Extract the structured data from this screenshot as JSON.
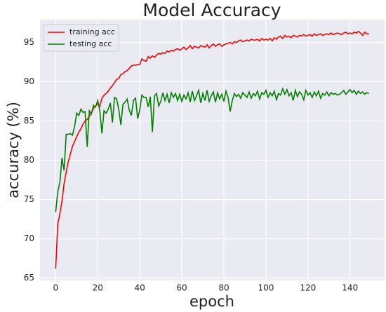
{
  "chart_data": {
    "type": "line",
    "title": "Model Accuracy",
    "xlabel": "epoch",
    "ylabel": "accuracy (%)",
    "x": [
      0,
      1,
      2,
      3,
      4,
      5,
      6,
      7,
      8,
      9,
      10,
      11,
      12,
      13,
      14,
      15,
      16,
      17,
      18,
      19,
      20,
      21,
      22,
      23,
      24,
      25,
      26,
      27,
      28,
      29,
      30,
      31,
      32,
      33,
      34,
      35,
      36,
      37,
      38,
      39,
      40,
      41,
      42,
      43,
      44,
      45,
      46,
      47,
      48,
      49,
      50,
      51,
      52,
      53,
      54,
      55,
      56,
      57,
      58,
      59,
      60,
      61,
      62,
      63,
      64,
      65,
      66,
      67,
      68,
      69,
      70,
      71,
      72,
      73,
      74,
      75,
      76,
      77,
      78,
      79,
      80,
      81,
      82,
      83,
      84,
      85,
      86,
      87,
      88,
      89,
      90,
      91,
      92,
      93,
      94,
      95,
      96,
      97,
      98,
      99,
      100,
      101,
      102,
      103,
      104,
      105,
      106,
      107,
      108,
      109,
      110,
      111,
      112,
      113,
      114,
      115,
      116,
      117,
      118,
      119,
      120,
      121,
      122,
      123,
      124,
      125,
      126,
      127,
      128,
      129,
      130,
      131,
      132,
      133,
      134,
      135,
      136,
      137,
      138,
      139,
      140,
      141,
      142,
      143,
      144,
      145,
      146,
      147,
      148,
      149
    ],
    "series": [
      {
        "name": "training acc",
        "color": "#ff0000",
        "values": [
          66.2,
          71.8,
          73.2,
          74.8,
          77.0,
          78.5,
          79.8,
          80.8,
          81.8,
          82.4,
          83.0,
          83.6,
          84.0,
          84.6,
          85.0,
          85.2,
          85.6,
          86.0,
          86.6,
          86.9,
          87.2,
          86.9,
          87.9,
          88.3,
          88.5,
          88.8,
          89.2,
          89.5,
          89.9,
          90.3,
          90.4,
          90.9,
          91.0,
          91.3,
          91.4,
          91.7,
          92.0,
          92.1,
          92.1,
          92.2,
          92.2,
          92.9,
          92.7,
          92.6,
          93.2,
          93.0,
          93.3,
          93.1,
          93.4,
          93.6,
          93.5,
          93.7,
          93.6,
          93.9,
          93.8,
          94.0,
          93.9,
          94.1,
          94.2,
          94.0,
          94.2,
          94.4,
          94.1,
          94.3,
          94.6,
          94.2,
          94.5,
          94.4,
          94.3,
          94.6,
          94.5,
          94.4,
          94.7,
          94.3,
          94.6,
          94.8,
          94.5,
          94.7,
          94.8,
          94.5,
          94.7,
          94.8,
          94.9,
          95.0,
          94.8,
          95.1,
          95.0,
          95.2,
          95.3,
          95.1,
          95.2,
          95.3,
          95.2,
          95.4,
          95.3,
          95.3,
          95.4,
          95.2,
          95.5,
          95.3,
          95.4,
          95.3,
          95.5,
          95.2,
          95.6,
          95.4,
          95.7,
          95.8,
          95.5,
          95.9,
          95.7,
          95.8,
          95.6,
          95.9,
          95.8,
          95.7,
          95.9,
          95.8,
          96.0,
          95.8,
          95.9,
          96.0,
          95.8,
          96.1,
          95.9,
          96.0,
          96.1,
          95.9,
          96.0,
          96.1,
          96.0,
          96.2,
          96.0,
          96.1,
          96.2,
          96.1,
          96.0,
          96.2,
          96.3,
          96.1,
          96.2,
          96.1,
          96.3,
          96.2,
          96.4,
          96.2,
          95.9,
          96.3,
          96.1,
          96.1
        ]
      },
      {
        "name": "testing acc",
        "color": "#008000",
        "values": [
          73.4,
          76.0,
          77.2,
          80.3,
          78.7,
          83.3,
          83.3,
          83.4,
          83.2,
          84.3,
          86.0,
          85.7,
          86.5,
          86.1,
          86.2,
          81.7,
          86.3,
          85.9,
          87.0,
          86.8,
          87.6,
          86.3,
          83.4,
          86.3,
          86.0,
          86.5,
          87.3,
          84.8,
          88.0,
          87.8,
          86.5,
          84.5,
          87.1,
          87.4,
          87.8,
          86.4,
          85.7,
          87.6,
          87.9,
          85.3,
          86.4,
          88.3,
          88.0,
          88.0,
          86.8,
          88.1,
          83.6,
          88.2,
          88.5,
          86.9,
          87.5,
          88.6,
          87.6,
          88.4,
          87.3,
          88.6,
          88.0,
          88.5,
          87.6,
          88.4,
          87.5,
          88.3,
          87.8,
          88.6,
          87.4,
          88.8,
          87.6,
          88.2,
          88.9,
          87.3,
          88.5,
          87.6,
          88.9,
          87.5,
          88.2,
          88.7,
          87.4,
          88.6,
          87.8,
          88.4,
          87.5,
          88.8,
          88.0,
          86.2,
          87.6,
          88.5,
          88.1,
          88.4,
          87.9,
          88.6,
          88.3,
          88.0,
          88.7,
          87.9,
          88.5,
          88.2,
          88.8,
          87.8,
          88.6,
          88.4,
          88.9,
          88.0,
          88.6,
          88.2,
          88.8,
          87.7,
          88.5,
          88.3,
          89.1,
          88.4,
          89.0,
          88.2,
          88.6,
          87.6,
          88.9,
          88.1,
          88.7,
          88.4,
          87.7,
          88.9,
          88.3,
          88.6,
          88.0,
          88.7,
          88.2,
          88.8,
          87.9,
          88.5,
          88.3,
          88.7,
          88.2,
          88.6,
          88.4,
          88.5,
          88.3,
          88.4,
          88.6,
          88.9,
          88.4,
          88.7,
          89.0,
          88.6,
          88.9,
          88.4,
          88.8,
          88.5,
          88.7,
          88.4,
          88.6,
          88.5
        ]
      }
    ],
    "xlim": [
      -7.45,
      156.45
    ],
    "ylim": [
      64.7,
      97.9
    ],
    "xticks": [
      0,
      20,
      40,
      60,
      80,
      100,
      120,
      140
    ],
    "yticks": [
      65,
      70,
      75,
      80,
      85,
      90,
      95
    ],
    "grid": true,
    "legend": "upper left"
  }
}
